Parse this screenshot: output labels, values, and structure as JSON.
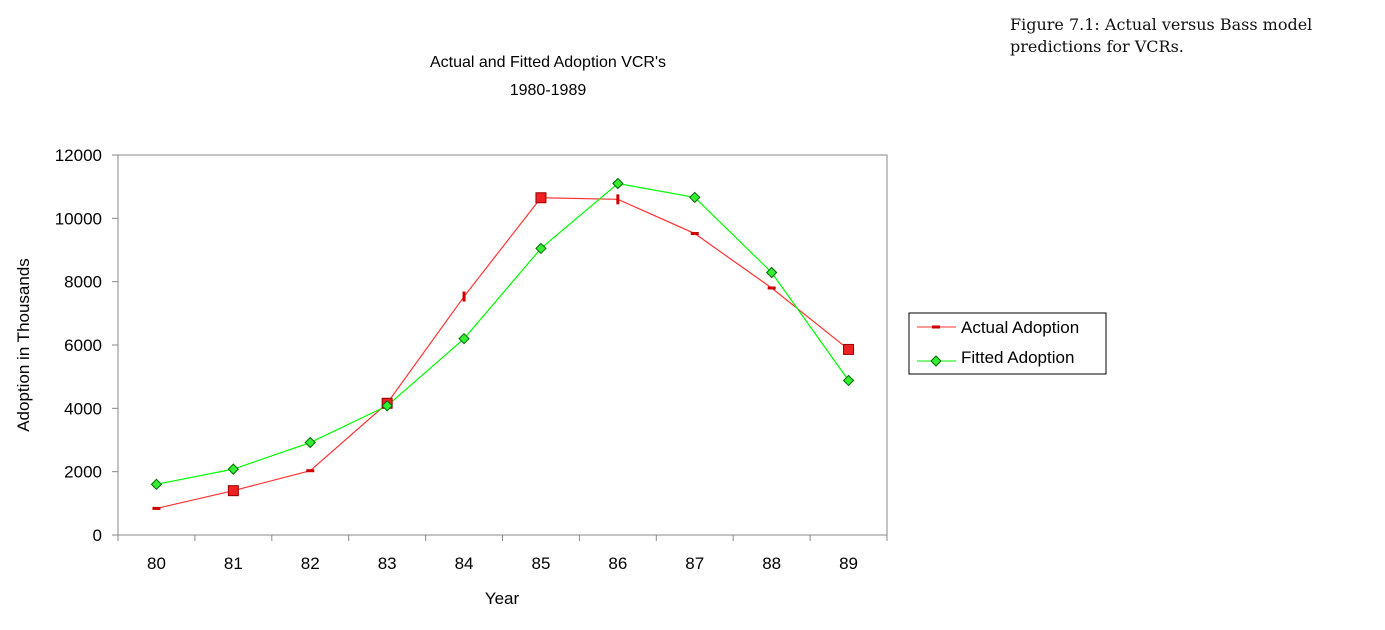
{
  "caption": "Figure 7.1:  Actual versus Bass model predictions for VCRs.",
  "chart_data": {
    "type": "line",
    "title": "Actual and Fitted Adoption VCR's",
    "subtitle": "1980-1989",
    "xlabel": "Year",
    "ylabel": "Adoption in Thousands",
    "categories": [
      "80",
      "81",
      "82",
      "83",
      "84",
      "85",
      "86",
      "87",
      "88",
      "89"
    ],
    "ylim": [
      0,
      12000
    ],
    "yticks": [
      "0",
      "2000",
      "4000",
      "6000",
      "8000",
      "10000",
      "12000"
    ],
    "grid": false,
    "legend_position": "right",
    "series": [
      {
        "name": "Actual Adoption",
        "color": "#ff3333",
        "marker_color": "#cc0000",
        "values": [
          840,
          1400,
          2030,
          4160,
          7530,
          10650,
          10600,
          9520,
          7800,
          5860
        ]
      },
      {
        "name": "Fitted Adoption",
        "color": "#00ff00",
        "marker_color": "#33ee33",
        "values": [
          1600,
          2080,
          2920,
          4080,
          6200,
          9050,
          11100,
          10660,
          8290,
          4880
        ]
      }
    ]
  }
}
